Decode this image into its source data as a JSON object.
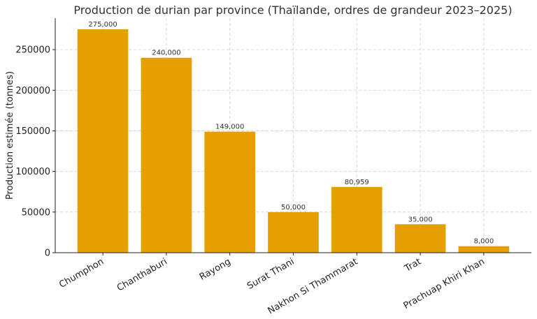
{
  "chart_data": {
    "type": "bar",
    "title": "Production de durian par province (Thaïlande, ordres de grandeur 2023–2025)",
    "xlabel": "",
    "ylabel": "Production estimée (tonnes)",
    "categories": [
      "Chumphon",
      "Chanthaburi",
      "Rayong",
      "Surat Thani",
      "Nakhon Si Thammarat",
      "Trat",
      "Prachuap Khiri Khan"
    ],
    "values": [
      275000,
      240000,
      149000,
      50000,
      80959,
      35000,
      8000
    ],
    "data_labels": [
      "275,000",
      "240,000",
      "149,000",
      "50,000",
      "80,959",
      "35,000",
      "8,000"
    ],
    "yticks": [
      0,
      50000,
      100000,
      150000,
      200000,
      250000
    ],
    "ytick_labels": [
      "0",
      "50000",
      "100000",
      "150000",
      "200000",
      "250000"
    ],
    "ylim": [
      0,
      288750
    ],
    "grid": true,
    "bar_color": "#e5a000"
  }
}
